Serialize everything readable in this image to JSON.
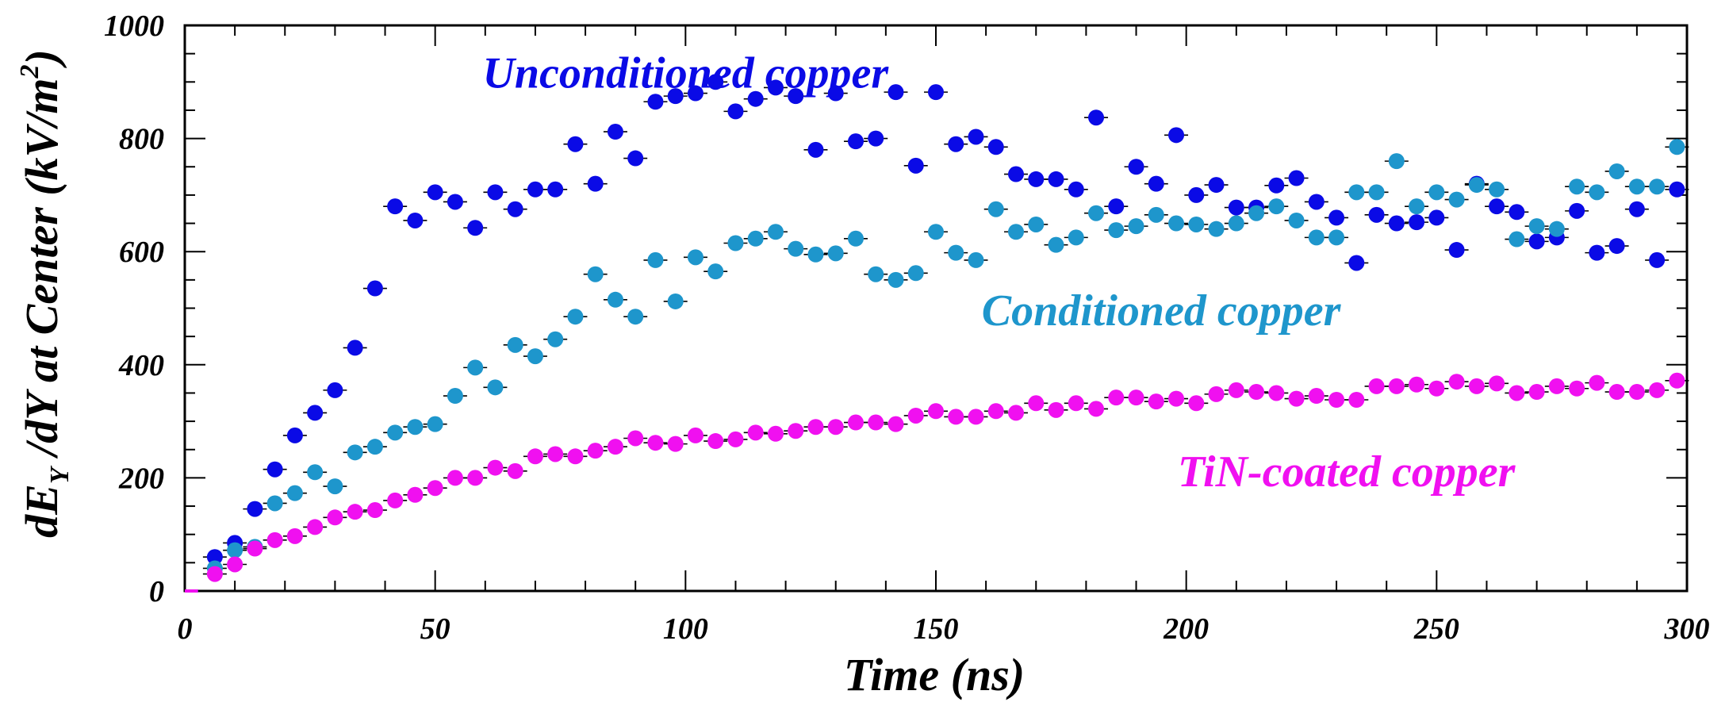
{
  "chart_data": {
    "type": "scatter",
    "xlabel": "Time (ns)",
    "ylabel": {
      "prefix": "dE",
      "sub": "Y",
      "middle": " /dY at Center (kV/m",
      "sup": "2",
      "suffix": ")"
    },
    "xlim": [
      0,
      300
    ],
    "ylim": [
      0,
      1000
    ],
    "xticks": [
      0,
      50,
      100,
      150,
      200,
      250,
      300
    ],
    "yticks": [
      0,
      200,
      400,
      600,
      800,
      1000
    ],
    "grid": false,
    "series": [
      {
        "name": "Unconditioned copper",
        "color": "#0a0ae6",
        "x": [
          2,
          6,
          10,
          14,
          18,
          22,
          26,
          30,
          34,
          38,
          42,
          46,
          50,
          54,
          58,
          62,
          66,
          70,
          74,
          78,
          82,
          86,
          90,
          94,
          98,
          102,
          106,
          110,
          114,
          118,
          122,
          126,
          130,
          134,
          138,
          142,
          146,
          150,
          154,
          158,
          162,
          166,
          170,
          174,
          178,
          182,
          186,
          190,
          194,
          198,
          202,
          206,
          210,
          214,
          218,
          222,
          226,
          230,
          234,
          238,
          242,
          246,
          250,
          254,
          258,
          262,
          266,
          270,
          274,
          278,
          282,
          286,
          290,
          294,
          298
        ],
        "y": [
          0,
          60,
          85,
          145,
          215,
          275,
          315,
          355,
          430,
          535,
          680,
          655,
          705,
          688,
          642,
          705,
          675,
          710,
          710,
          790,
          720,
          812,
          765,
          865,
          875,
          880,
          900,
          848,
          870,
          890,
          875,
          780,
          880,
          795,
          800,
          882,
          752,
          882,
          790,
          803,
          785,
          737,
          728,
          728,
          710,
          837,
          680,
          750,
          720,
          806,
          700,
          718,
          678,
          678,
          717,
          730,
          688,
          660,
          580,
          665,
          650,
          652,
          660,
          603,
          720,
          680,
          670,
          618,
          625,
          672,
          598,
          610,
          675,
          585,
          710
        ]
      },
      {
        "name": "Conditioned copper",
        "color": "#1e96cc",
        "x": [
          2,
          6,
          10,
          14,
          18,
          22,
          26,
          30,
          34,
          38,
          42,
          46,
          50,
          54,
          58,
          62,
          66,
          70,
          74,
          78,
          82,
          86,
          90,
          94,
          98,
          102,
          106,
          110,
          114,
          118,
          122,
          126,
          130,
          134,
          138,
          142,
          146,
          150,
          154,
          158,
          162,
          166,
          170,
          174,
          178,
          182,
          186,
          190,
          194,
          198,
          202,
          206,
          210,
          214,
          218,
          222,
          226,
          230,
          234,
          238,
          242,
          246,
          250,
          254,
          258,
          262,
          266,
          270,
          274,
          278,
          282,
          286,
          290,
          294,
          298
        ],
        "y": [
          0,
          40,
          72,
          78,
          155,
          173,
          210,
          185,
          245,
          255,
          280,
          290,
          295,
          345,
          395,
          360,
          435,
          415,
          445,
          485,
          560,
          515,
          485,
          585,
          512,
          590,
          565,
          615,
          623,
          635,
          605,
          595,
          597,
          623,
          560,
          550,
          562,
          635,
          598,
          585,
          675,
          635,
          648,
          612,
          625,
          668,
          638,
          645,
          665,
          650,
          648,
          640,
          650,
          668,
          680,
          655,
          625,
          625,
          705,
          705,
          760,
          680,
          705,
          692,
          718,
          710,
          622,
          645,
          640,
          715,
          705,
          742,
          715,
          715,
          785
        ]
      },
      {
        "name": "TiN-coated copper",
        "color": "#f010f0",
        "x": [
          2,
          6,
          10,
          14,
          18,
          22,
          26,
          30,
          34,
          38,
          42,
          46,
          50,
          54,
          58,
          62,
          66,
          70,
          74,
          78,
          82,
          86,
          90,
          94,
          98,
          102,
          106,
          110,
          114,
          118,
          122,
          126,
          130,
          134,
          138,
          142,
          146,
          150,
          154,
          158,
          162,
          166,
          170,
          174,
          178,
          182,
          186,
          190,
          194,
          198,
          202,
          206,
          210,
          214,
          218,
          222,
          226,
          230,
          234,
          238,
          242,
          246,
          250,
          254,
          258,
          262,
          266,
          270,
          274,
          278,
          282,
          286,
          290,
          294,
          298
        ],
        "y": [
          0,
          30,
          47,
          75,
          90,
          97,
          113,
          130,
          140,
          143,
          160,
          170,
          182,
          200,
          200,
          218,
          212,
          238,
          242,
          238,
          248,
          255,
          270,
          262,
          260,
          275,
          265,
          268,
          280,
          278,
          283,
          290,
          290,
          298,
          298,
          295,
          310,
          318,
          308,
          308,
          318,
          315,
          332,
          320,
          332,
          322,
          342,
          342,
          335,
          340,
          332,
          348,
          355,
          352,
          350,
          340,
          345,
          338,
          338,
          362,
          362,
          365,
          358,
          370,
          362,
          367,
          350,
          352,
          362,
          358,
          368,
          352,
          352,
          355,
          372
        ]
      }
    ],
    "annotations": [
      {
        "text": "Unconditioned copper",
        "series": 0,
        "at": [
          100,
          890
        ]
      },
      {
        "text": "Conditioned copper",
        "series": 1,
        "at": [
          195,
          470
        ]
      },
      {
        "text": "TiN-coated copper",
        "series": 2,
        "at": [
          232,
          185
        ]
      }
    ]
  }
}
